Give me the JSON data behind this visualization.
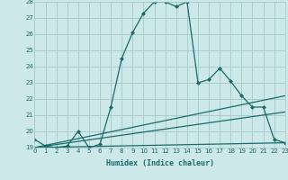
{
  "xlabel": "Humidex (Indice chaleur)",
  "bg_color": "#cce8e8",
  "grid_color": "#aacccc",
  "line_color": "#1a6b6b",
  "x_min": 0,
  "x_max": 23,
  "y_min": 19,
  "y_max": 28,
  "lines": [
    {
      "x": [
        0,
        1,
        2,
        3,
        4,
        5,
        6,
        7,
        8,
        9,
        10,
        11,
        12,
        13,
        14,
        15,
        16,
        17,
        18,
        19,
        20,
        21,
        22,
        23
      ],
      "y": [
        19.5,
        19.1,
        19.0,
        19.1,
        20.0,
        19.0,
        19.2,
        21.5,
        24.5,
        26.1,
        27.3,
        28.0,
        28.0,
        27.7,
        28.0,
        23.0,
        23.2,
        23.9,
        23.1,
        22.2,
        21.5,
        21.5,
        19.5,
        19.3
      ],
      "marker": true
    },
    {
      "x": [
        0,
        23
      ],
      "y": [
        19.0,
        22.2
      ],
      "marker": false
    },
    {
      "x": [
        0,
        23
      ],
      "y": [
        19.0,
        21.2
      ],
      "marker": false
    },
    {
      "x": [
        0,
        23
      ],
      "y": [
        19.0,
        19.3
      ],
      "marker": false
    }
  ]
}
